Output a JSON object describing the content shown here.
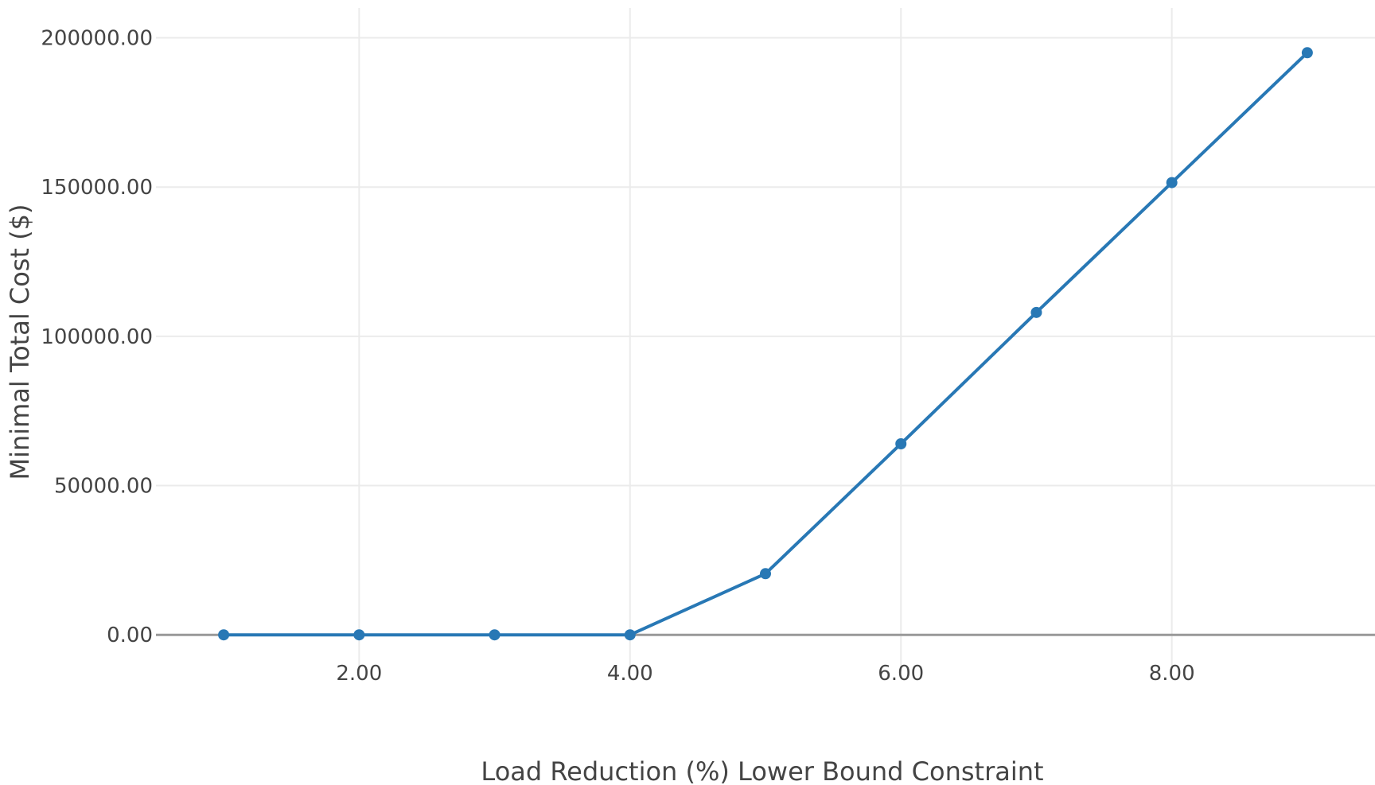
{
  "chart_data": {
    "type": "line",
    "title": "",
    "xlabel": "Load Reduction (%) Lower Bound Constraint",
    "ylabel": "Minimal Total Cost ($)",
    "x": [
      1,
      2,
      3,
      4,
      5,
      6,
      7,
      8,
      9
    ],
    "series": [
      {
        "values": [
          0,
          0,
          0,
          0,
          20500,
          64000,
          108000,
          151500,
          195000
        ]
      }
    ],
    "xlim": [
      0.5,
      9.5
    ],
    "ylim": [
      -13000,
      210000
    ],
    "x_ticks": [
      2,
      4,
      6,
      8
    ],
    "x_tick_labels": [
      "2.00",
      "4.00",
      "6.00",
      "8.00"
    ],
    "y_ticks": [
      0,
      50000,
      100000,
      150000,
      200000
    ],
    "y_tick_labels": [
      "0.00",
      "50000.00",
      "100000.00",
      "150000.00",
      "200000.00"
    ],
    "grid": true,
    "legend": "none",
    "colors": {
      "series": "#2878b5",
      "grid": "#ebebeb",
      "zero_line": "#999999",
      "text": "#444444"
    }
  }
}
